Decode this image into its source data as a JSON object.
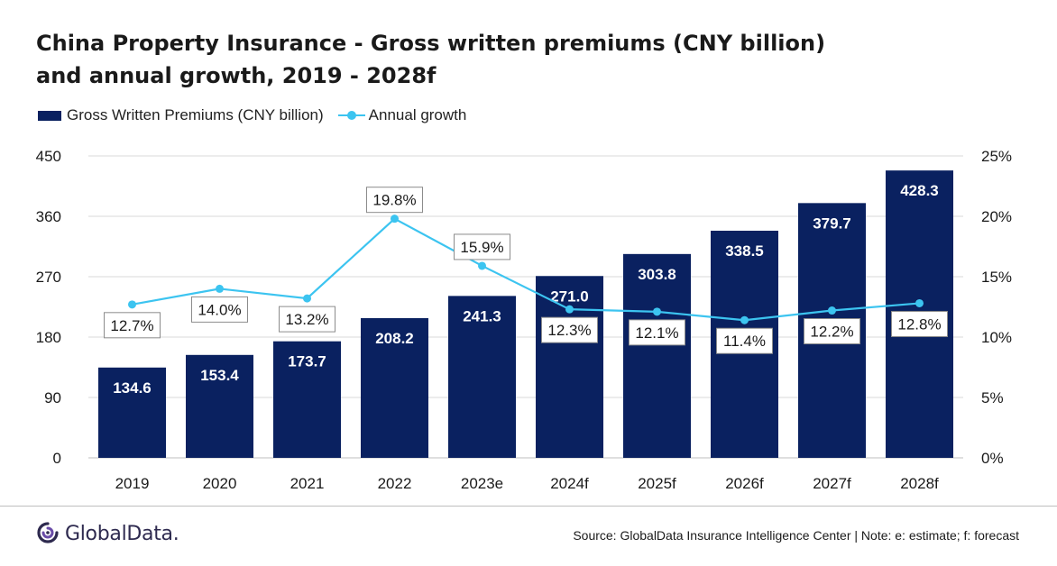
{
  "chart_data": {
    "type": "bar",
    "title_line1": "China Property Insurance - Gross written premiums (CNY billion)",
    "title_line2": "and annual growth, 2019 - 2028f",
    "categories": [
      "2019",
      "2020",
      "2021",
      "2022",
      "2023e",
      "2024f",
      "2025f",
      "2026f",
      "2027f",
      "2028f"
    ],
    "series": [
      {
        "name": "Gross Written Premiums (CNY billion)",
        "type": "bar",
        "axis": "left",
        "values": [
          134.6,
          153.4,
          173.7,
          208.2,
          241.3,
          271.0,
          303.8,
          338.5,
          379.7,
          428.3
        ],
        "labels": [
          "134.6",
          "153.4",
          "173.7",
          "208.2",
          "241.3",
          "271.0",
          "303.8",
          "338.5",
          "379.7",
          "428.3"
        ],
        "color": "#0a2160"
      },
      {
        "name": "Annual growth",
        "type": "line",
        "axis": "right",
        "values": [
          12.7,
          14.0,
          13.2,
          19.8,
          15.9,
          12.3,
          12.1,
          11.4,
          12.2,
          12.8
        ],
        "labels": [
          "12.7%",
          "14.0%",
          "13.2%",
          "19.8%",
          "15.9%",
          "12.3%",
          "12.1%",
          "11.4%",
          "12.2%",
          "12.8%"
        ],
        "label_position": [
          "below",
          "below",
          "below",
          "above",
          "above",
          "below",
          "below",
          "below",
          "below",
          "below"
        ],
        "color": "#3cc4f0"
      }
    ],
    "y_left": {
      "min": 0,
      "max": 450,
      "ticks": [
        "0",
        "90",
        "180",
        "270",
        "360",
        "450"
      ],
      "tick_values": [
        0,
        90,
        180,
        270,
        360,
        450
      ]
    },
    "y_right": {
      "min": 0,
      "max": 25,
      "ticks": [
        "0%",
        "5%",
        "10%",
        "15%",
        "20%",
        "25%"
      ],
      "tick_values": [
        0,
        5,
        10,
        15,
        20,
        25
      ]
    },
    "grid": true,
    "legend_placement": "top-left"
  },
  "footer": {
    "logo_text": "GlobalData.",
    "source": "Source: GlobalData Insurance Intelligence Center | Note: e: estimate; f: forecast"
  },
  "colors": {
    "bar": "#0a2160",
    "line": "#3cc4f0",
    "grid": "#d9d9d9",
    "logo": "#2e2a4f"
  },
  "icons": {
    "logo": "globaldata-logo-icon"
  }
}
